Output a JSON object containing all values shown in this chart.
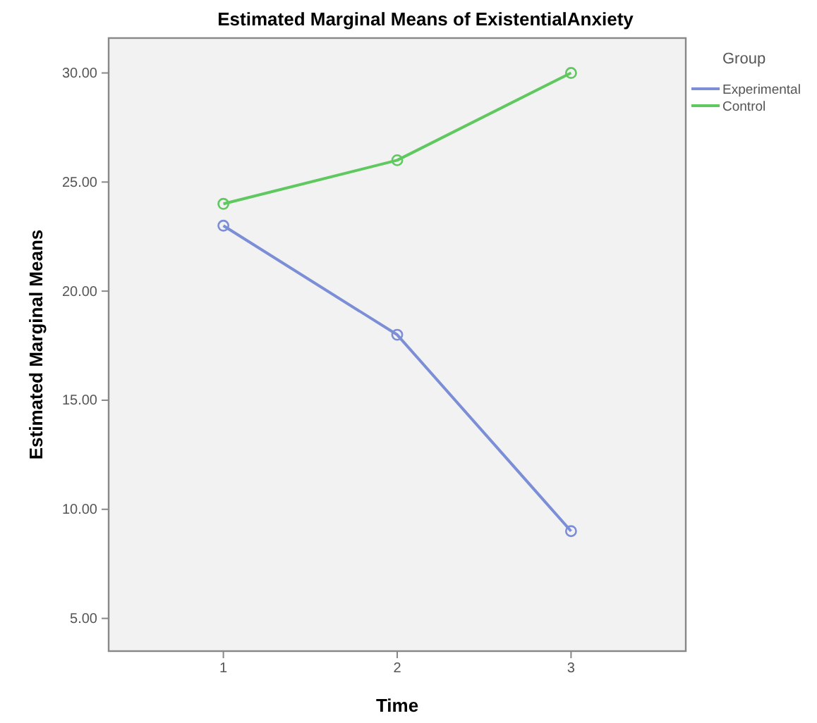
{
  "chart_data": {
    "type": "line",
    "title": "Estimated Marginal Means of ExistentialAnxiety",
    "xlabel": "Time",
    "ylabel": "Estimated Marginal Means",
    "legend_title": "Group",
    "categories": [
      "1",
      "2",
      "3"
    ],
    "series": [
      {
        "name": "Experimental",
        "color": "#7b8ed6",
        "values": [
          23,
          18,
          9
        ]
      },
      {
        "name": "Control",
        "color": "#5fc85f",
        "values": [
          24,
          26,
          30
        ]
      }
    ],
    "ylim": [
      3.5,
      31.6
    ],
    "yticks": [
      {
        "value": 5,
        "label": "5.00"
      },
      {
        "value": 10,
        "label": "10.00"
      },
      {
        "value": 15,
        "label": "15.00"
      },
      {
        "value": 20,
        "label": "20.00"
      },
      {
        "value": 25,
        "label": "25.00"
      },
      {
        "value": 30,
        "label": "30.00"
      }
    ],
    "grid": false,
    "legend": "right",
    "marker": "circle",
    "line_style": "solid"
  }
}
